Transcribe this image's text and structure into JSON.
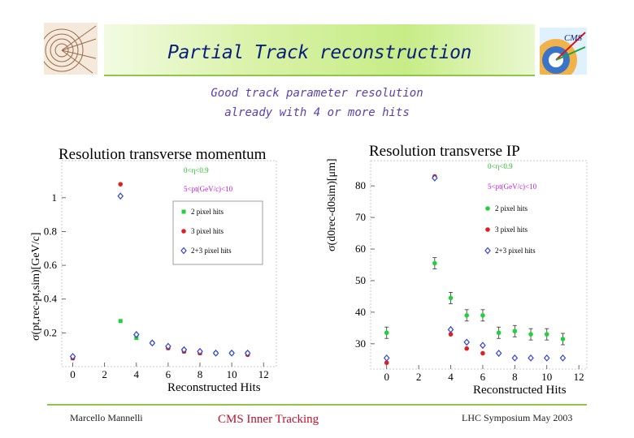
{
  "header": {
    "title": "Partial  Track reconstruction",
    "subtitle_line1": "Good track parameter resolution",
    "subtitle_line2": "already with 4 or more hits"
  },
  "footer": {
    "left": "Marcello Mannelli",
    "center": "CMS Inner Tracking",
    "right": "LHC Symposium May 2003"
  },
  "colors": {
    "accent_green": "#8fc648",
    "title_blue": "#0a1f7a",
    "green": "#22d03a",
    "red": "#e02020",
    "blue": "#3344cc"
  },
  "chart_data": [
    {
      "type": "scatter",
      "title": "Resolution transverse momentum",
      "xlabel": "Reconstructed Hits",
      "ylabel": "σ(pt,rec-pt,sim)[GeV/c]",
      "xlim": [
        -1,
        12.5
      ],
      "ylim": [
        0,
        1.22
      ],
      "xticks": [
        0,
        2,
        4,
        6,
        8,
        10,
        12
      ],
      "yticks": [
        0.2,
        0.4,
        0.6,
        0.8,
        1
      ],
      "ytick_labels": [
        "0.2",
        "0.4",
        "0.6",
        "0.8",
        "1"
      ],
      "cuts": [
        "0<η<0.9",
        "5<pt(GeV/c)<10"
      ],
      "series": [
        {
          "name": "2 pixel hits",
          "marker": "square",
          "color": "#22d03a",
          "x": [
            0,
            3,
            4,
            5,
            6,
            7,
            8,
            9,
            10,
            11
          ],
          "y": [
            0.05,
            0.27,
            0.17,
            0.14,
            0.11,
            0.09,
            0.08,
            0.08,
            0.08,
            0.08
          ]
        },
        {
          "name": "3 pixel hits",
          "marker": "circle",
          "color": "#e02020",
          "x": [
            0,
            3,
            4,
            5,
            6,
            7,
            8,
            9,
            10,
            11
          ],
          "y": [
            0.05,
            1.08,
            0.19,
            0.14,
            0.11,
            0.09,
            0.08,
            0.08,
            0.08,
            0.07
          ]
        },
        {
          "name": "2+3 pixel hits",
          "marker": "diamond",
          "color": "#3344cc",
          "x": [
            0,
            3,
            4,
            5,
            6,
            7,
            8,
            9,
            10,
            11
          ],
          "y": [
            0.06,
            1.01,
            0.19,
            0.14,
            0.12,
            0.1,
            0.09,
            0.08,
            0.08,
            0.08
          ]
        }
      ]
    },
    {
      "type": "scatter",
      "title": "Resolution transverse IP",
      "xlabel": "Reconstructed Hits",
      "ylabel": "σ(d0rec-d0sim)[μm]",
      "xlim": [
        -1,
        12.5
      ],
      "ylim": [
        22,
        88
      ],
      "xticks": [
        0,
        2,
        4,
        6,
        8,
        10,
        12
      ],
      "yticks": [
        30,
        40,
        50,
        60,
        70,
        80
      ],
      "ytick_labels": [
        "30",
        "40",
        "50",
        "60",
        "70",
        "80"
      ],
      "cuts": [
        "0<η<0.9",
        "5<pt(GeV/c)<10"
      ],
      "series": [
        {
          "name": "2 pixel hits",
          "marker": "circle",
          "color": "#22d03a",
          "x": [
            0,
            3,
            4,
            5,
            6,
            7,
            8,
            9,
            10,
            11
          ],
          "y": [
            33.5,
            55.5,
            44.5,
            39,
            39,
            33.5,
            34,
            33,
            33,
            31.5
          ]
        },
        {
          "name": "3 pixel hits",
          "marker": "circle",
          "color": "#e02020",
          "x": [
            0,
            3,
            4,
            5,
            6
          ],
          "y": [
            24,
            83,
            33,
            28.5,
            27
          ]
        },
        {
          "name": "2+3 pixel hits",
          "marker": "diamond",
          "color": "#3344cc",
          "x": [
            0,
            3,
            4,
            5,
            6,
            7,
            8,
            9,
            10,
            11
          ],
          "y": [
            25.5,
            82.5,
            34.5,
            30.5,
            29.5,
            27,
            25.5,
            25.5,
            25.5,
            25.5
          ]
        }
      ]
    }
  ]
}
